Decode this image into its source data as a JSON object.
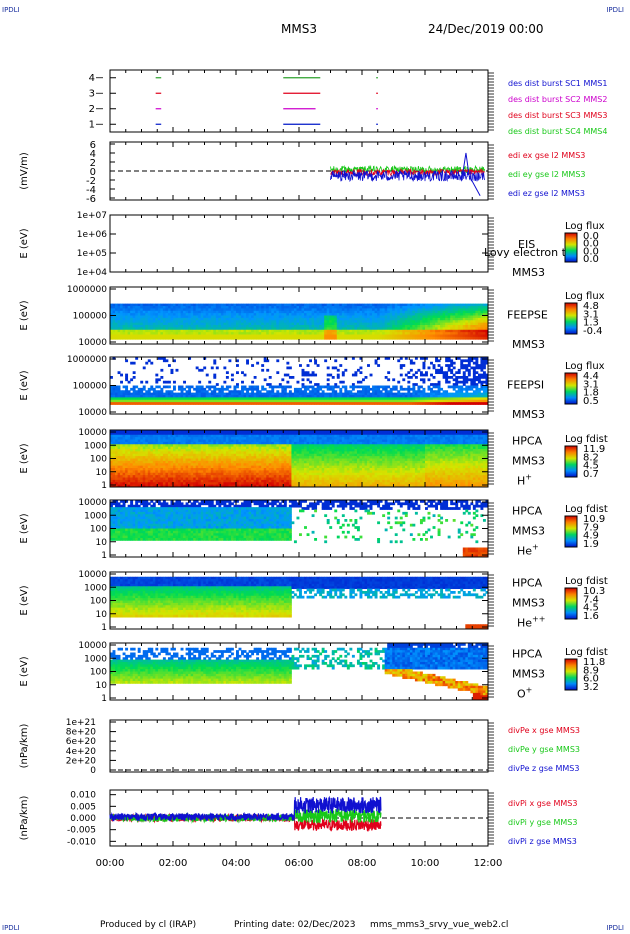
{
  "corners": {
    "left": "IPDLI",
    "right": "IPDLI"
  },
  "header": {
    "spacecraft": "MMS3",
    "date": "24/Dec/2019 00:00"
  },
  "footer": {
    "produced_by": "Produced by cl (IRAP)",
    "printing_date": "Printing date: 02/Dec/2023",
    "script_name": "mms_mms3_srvy_vue_web2.cl"
  },
  "colors": {
    "mms1": "#2ca02c",
    "mms2": "#e0001b",
    "mms3": "#cc00cc",
    "mms4": "#0018c8",
    "ex": "#e0001b",
    "ey": "#18c818",
    "ez": "#1010d0",
    "lbl_red": "#e0001b",
    "lbl_magenta": "#cc00cc",
    "lbl_blue": "#1010d0",
    "lbl_green": "#18c818"
  },
  "chart_data": [
    {
      "type": "line",
      "id": "burst",
      "ylim": [
        0.5,
        4.5
      ],
      "yticks": [
        "1",
        "2",
        "3",
        "4"
      ],
      "legend": [
        "des dist burst SC1 MMS1",
        "des dist burst SC2 MMS2",
        "des dist burst SC3 MMS3",
        "des dist burst SC4 MMS4"
      ],
      "series": [
        {
          "name": "des dist burst SC1 MMS1",
          "y": 4,
          "segments": [
            [
              1.45,
              1.6
            ],
            [
              5.5,
              6.65
            ],
            [
              8.45,
              8.48
            ]
          ]
        },
        {
          "name": "des dist burst SC2 MMS2",
          "y": 3,
          "segments": [
            [
              1.45,
              1.6
            ],
            [
              5.5,
              6.65
            ],
            [
              8.45,
              8.48
            ]
          ]
        },
        {
          "name": "des dist burst SC3 MMS3",
          "y": 2,
          "segments": [
            [
              1.45,
              1.6
            ],
            [
              5.5,
              6.5
            ],
            [
              8.45,
              8.48
            ]
          ]
        },
        {
          "name": "des dist burst SC4 MMS4",
          "y": 1,
          "segments": [
            [
              1.45,
              1.6
            ],
            [
              5.5,
              6.65
            ],
            [
              8.45,
              8.48
            ]
          ]
        }
      ]
    },
    {
      "type": "line",
      "id": "edi",
      "ylabel": "(mV/m)",
      "ylim": [
        -6,
        6
      ],
      "yticks": [
        "6",
        "4",
        "2",
        "0",
        "-2",
        "-4",
        "-6"
      ],
      "legend": [
        "edi ex gse l2 MMS3",
        "edi ey gse l2 MMS3",
        "edi ez gse l2 MMS3"
      ],
      "time_range": [
        7.0,
        11.9
      ]
    },
    {
      "type": "heatmap",
      "id": "eis",
      "ylabel": "E (eV)",
      "yticks": [
        "1e+07",
        "1e+06",
        "1e+05",
        "1e+04"
      ],
      "name": "EIS",
      "sc": "MMS3",
      "overlay": "Lovy electron to",
      "cbar_title": "Log flux",
      "cbar_ticks": [
        "0.0",
        "0.0",
        "0.0",
        "0.0"
      ]
    },
    {
      "type": "heatmap",
      "id": "feepse",
      "ylabel": "E (eV)",
      "yticks": [
        "1000000",
        "100000",
        "10000"
      ],
      "name": "FEEPSE",
      "sc": "MMS3",
      "cbar_title": "Log flux",
      "cbar_ticks": [
        "4.8",
        "3.1",
        "1.3",
        "-0.4"
      ]
    },
    {
      "type": "heatmap",
      "id": "feepsi",
      "ylabel": "E (eV)",
      "yticks": [
        "1000000",
        "100000",
        "10000"
      ],
      "name": "FEEPSI",
      "sc": "MMS3",
      "cbar_title": "Log flux",
      "cbar_ticks": [
        "4.4",
        "3.1",
        "1.8",
        "0.5"
      ]
    },
    {
      "type": "heatmap",
      "id": "hpca_h",
      "ylabel": "E (eV)",
      "yticks": [
        "10000",
        "1000",
        "100",
        "10",
        "1"
      ],
      "name": "HPCA",
      "sc": "MMS3",
      "ion": "H",
      "charge": "+",
      "cbar_title": "Log fdist",
      "cbar_ticks": [
        "11.9",
        "8.2",
        "4.5",
        "0.7"
      ]
    },
    {
      "type": "heatmap",
      "id": "hpca_he",
      "ylabel": "E (eV)",
      "yticks": [
        "10000",
        "1000",
        "100",
        "10",
        "1"
      ],
      "name": "HPCA",
      "sc": "MMS3",
      "ion": "He",
      "charge": "+",
      "cbar_title": "Log fdist",
      "cbar_ticks": [
        "10.9",
        "7.9",
        "4.9",
        "1.9"
      ]
    },
    {
      "type": "heatmap",
      "id": "hpca_hepp",
      "ylabel": "E (eV)",
      "yticks": [
        "10000",
        "1000",
        "100",
        "10",
        "1"
      ],
      "name": "HPCA",
      "sc": "MMS3",
      "ion": "He",
      "charge": "++",
      "cbar_title": "Log fdist",
      "cbar_ticks": [
        "10.3",
        "7.4",
        "4.5",
        "1.6"
      ]
    },
    {
      "type": "heatmap",
      "id": "hpca_o",
      "ylabel": "E (eV)",
      "yticks": [
        "10000",
        "1000",
        "100",
        "10",
        "1"
      ],
      "name": "HPCA",
      "sc": "MMS3",
      "ion": "O",
      "charge": "+",
      "cbar_title": "Log fdist",
      "cbar_ticks": [
        "11.8",
        "8.9",
        "6.0",
        "3.2"
      ]
    },
    {
      "type": "line",
      "id": "divpe",
      "ylabel": "(nPa/km)",
      "ylim": [
        0,
        1e+21
      ],
      "yticks": [
        "1e+21",
        "8e+20",
        "6e+20",
        "4e+20",
        "2e+20",
        "0"
      ],
      "legend": [
        "divPe x gse MMS3",
        "divPe y gse MMS3",
        "divPe z gse MMS3"
      ]
    },
    {
      "type": "line",
      "id": "divpi",
      "ylabel": "(nPa/km)",
      "ylim": [
        -0.012,
        0.012
      ],
      "yticks": [
        "0.010",
        "0.005",
        "0.000",
        "-0.005",
        "-0.010"
      ],
      "legend": [
        "divPi x gse MMS3",
        "divPi y gse MMS3",
        "divPi z gse MMS3"
      ],
      "time_range": [
        0.0,
        8.6
      ]
    }
  ],
  "time_axis": {
    "ticks": [
      "00:00",
      "02:00",
      "04:00",
      "06:00",
      "08:00",
      "10:00",
      "12:00"
    ],
    "range_hours": [
      0,
      12
    ]
  }
}
